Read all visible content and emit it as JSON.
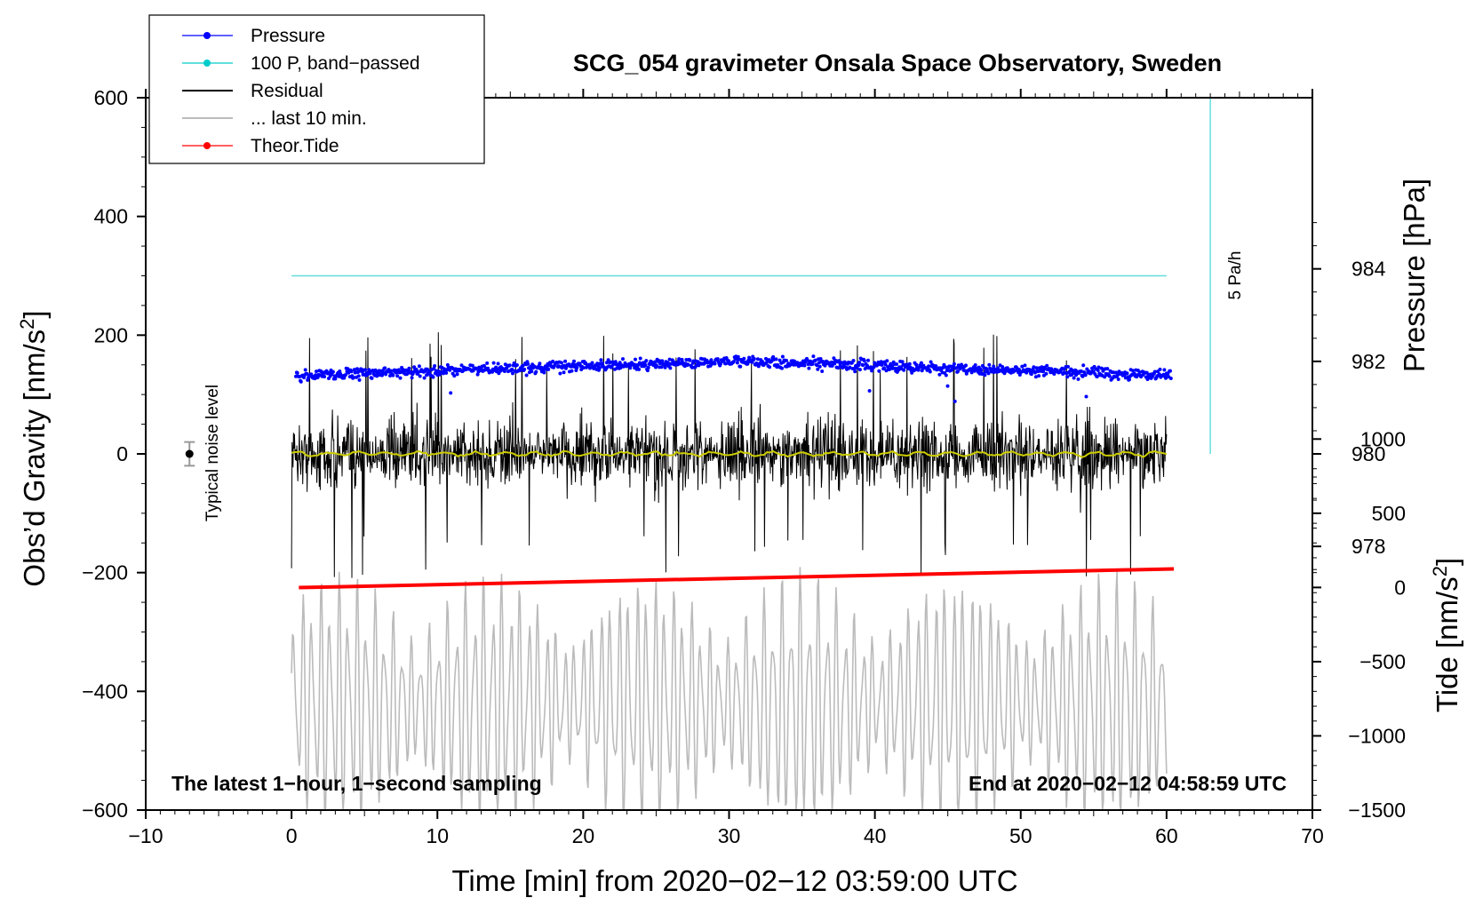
{
  "chart_data": {
    "type": "line",
    "title": "SCG_054 gravimeter Onsala Space Observatory, Sweden",
    "xlabel": "Time [min] from 2020−02−12 03:59:00 UTC",
    "ylabel_left_prefix": "Obs’d Gravity [nm/s",
    "ylabel_left_sup": "2",
    "ylabel_left_suffix": "]",
    "ylabel_pressure": "Pressure [hPa]",
    "ylabel_tide_prefix": "Tide [nm/s",
    "ylabel_tide_sup": "2",
    "ylabel_tide_suffix": "]",
    "xlim": [
      -10,
      70
    ],
    "ylim": [
      -600,
      600
    ],
    "pressure_lim": [
      972.3,
      987.7
    ],
    "tide_lim": [
      -1500,
      3300
    ],
    "x_ticks": [
      {
        "v": -10,
        "label": "−10"
      },
      {
        "v": 0,
        "label": "0"
      },
      {
        "v": 10,
        "label": "10"
      },
      {
        "v": 20,
        "label": "20"
      },
      {
        "v": 30,
        "label": "30"
      },
      {
        "v": 40,
        "label": "40"
      },
      {
        "v": 50,
        "label": "50"
      },
      {
        "v": 60,
        "label": "60"
      },
      {
        "v": 70,
        "label": "70"
      }
    ],
    "y_ticks": [
      {
        "v": -600,
        "label": "−600"
      },
      {
        "v": -400,
        "label": "−400"
      },
      {
        "v": -200,
        "label": "−200"
      },
      {
        "v": 0,
        "label": "0"
      },
      {
        "v": 200,
        "label": "200"
      },
      {
        "v": 400,
        "label": "400"
      },
      {
        "v": 600,
        "label": "600"
      }
    ],
    "pressure_ticks": [
      {
        "v": 978,
        "label": "978"
      },
      {
        "v": 980,
        "label": "980"
      },
      {
        "v": 982,
        "label": "982"
      },
      {
        "v": 984,
        "label": "984"
      }
    ],
    "tide_ticks": [
      {
        "v": -1500,
        "label": "−1500"
      },
      {
        "v": -1000,
        "label": "−1000"
      },
      {
        "v": -500,
        "label": "−500"
      },
      {
        "v": 0,
        "label": "0"
      },
      {
        "v": 500,
        "label": "500"
      },
      {
        "v": 1000,
        "label": "1000"
      }
    ],
    "legend": {
      "placement": "top-left",
      "entries": [
        {
          "label": "Pressure",
          "color": "#0000ff",
          "style": "line-dot"
        },
        {
          "label": "100 P, band−passed",
          "color": "#00cccc",
          "style": "line-dot"
        },
        {
          "label": "Residual",
          "color": "#000000",
          "style": "line"
        },
        {
          "label": "... last 10 min.",
          "color": "#bbbbbb",
          "style": "line"
        },
        {
          "label": "Theor.Tide",
          "color": "#ff0000",
          "style": "line-dot"
        }
      ]
    },
    "series": [
      {
        "name": "Pressure",
        "axis": "pressure",
        "x_range": [
          0.3,
          60.3
        ],
        "mean_hpa": [
          981.7,
          982.0,
          981.7
        ],
        "noise_hpa": 0.25,
        "color": "#0000ff"
      },
      {
        "name": "100 P, band−passed",
        "axis": "gravity",
        "x_range": [
          0,
          60
        ],
        "value": 300,
        "color": "#66dddd"
      },
      {
        "name": "Residual",
        "axis": "gravity",
        "x_range": [
          0,
          60
        ],
        "amplitude_typical": 100,
        "amplitude_max": 210,
        "color": "#000000"
      },
      {
        "name": "... last 10 min.",
        "axis": "gravity",
        "x_range": [
          0,
          60
        ],
        "center": -420,
        "amplitude_max": 230,
        "color": "#bbbbbb"
      },
      {
        "name": "Theor.Tide",
        "axis": "tide",
        "x_range": [
          0.5,
          60.5
        ],
        "values": [
          -1,
          125
        ],
        "color": "#ff0000"
      },
      {
        "name": "smoothed residual",
        "axis": "gravity",
        "x_range": [
          0,
          60
        ],
        "value": 0,
        "color": "#cccc00"
      }
    ],
    "noise_level": {
      "label": "Typical noise level",
      "x": -7,
      "value": 0,
      "error": 20
    },
    "rate_marker": {
      "label": "5 Pa/h",
      "x": 63,
      "from": 0,
      "to": 600,
      "color": "#66dddd"
    },
    "note_left": "The latest 1−hour, 1−second sampling",
    "note_right": "End at 2020−02−12 04:58:59 UTC"
  }
}
